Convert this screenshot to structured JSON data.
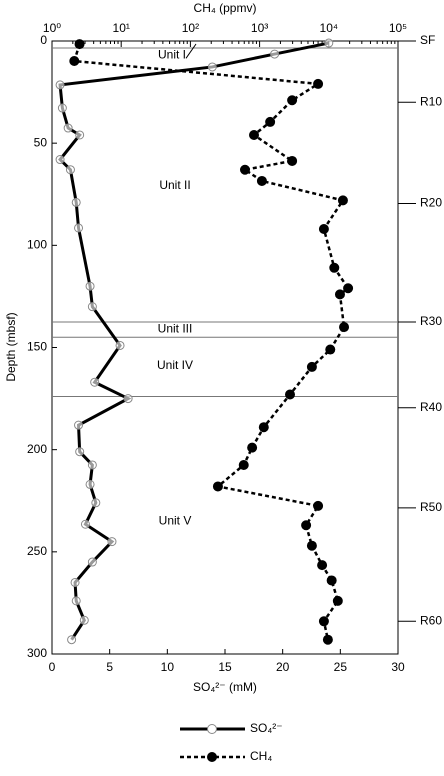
{
  "chart_data": {
    "type": "depth-profile",
    "ylabel": "Depth (mbsf)",
    "ylim": [
      0,
      300
    ],
    "yticks": [
      0,
      50,
      100,
      150,
      200,
      250,
      300
    ],
    "xlabel": "SO₄²⁻ (mM)",
    "xlim": [
      0,
      30
    ],
    "xticks": [
      0,
      5,
      10,
      15,
      20,
      25,
      30
    ],
    "x2label": "CH₄ (ppmv)",
    "x2lim": [
      1,
      100000
    ],
    "x2log": true,
    "x2ticks": [
      {
        "value": 1,
        "label": "10⁰"
      },
      {
        "value": 10,
        "label": "10¹"
      },
      {
        "value": 100,
        "label": "10²"
      },
      {
        "value": 1000,
        "label": "10³"
      },
      {
        "value": 10000,
        "label": "10⁴"
      },
      {
        "value": 100000,
        "label": "10⁵"
      }
    ],
    "series": [
      {
        "name": "SO₄²⁻",
        "axis": "x",
        "color": "#000000",
        "dash": false,
        "marker": "open",
        "depth": [
          1,
          6.4,
          12.7,
          21.5,
          32.8,
          42.6,
          46,
          58,
          63,
          79,
          91.5,
          120,
          130,
          149,
          167,
          175,
          188,
          201,
          207.5,
          217,
          226,
          236.5,
          245,
          255,
          265,
          274,
          283.5,
          293
        ],
        "values": [
          24,
          19.3,
          13.9,
          0.7,
          0.9,
          1.4,
          2.4,
          0.7,
          1.6,
          2.1,
          2.3,
          3.3,
          3.5,
          5.9,
          3.7,
          6.6,
          2.3,
          2.4,
          3.5,
          3.3,
          3.8,
          2.9,
          5.2,
          3.5,
          2.0,
          2.1,
          2.8,
          1.7
        ]
      },
      {
        "name": "CH₄",
        "axis": "x2",
        "color": "#000000",
        "dash": true,
        "marker": "filled",
        "depth": [
          1.5,
          9.8,
          21,
          29,
          39.6,
          46,
          58.7,
          63,
          68.5,
          78,
          92,
          111,
          121,
          124,
          140,
          151,
          159.5,
          173,
          189,
          199,
          207.5,
          218,
          227.5,
          237,
          247,
          256.5,
          264,
          274,
          284,
          293
        ],
        "values": [
          2.5,
          2.1,
          7000,
          2950,
          1420,
          830,
          2950,
          615,
          1080,
          16000,
          8500,
          12000,
          19000,
          14500,
          16600,
          10500,
          5700,
          2750,
          1150,
          780,
          590,
          250,
          7000,
          4700,
          5700,
          8000,
          11000,
          13500,
          8500,
          9700
        ]
      }
    ],
    "unit_boundaries": [
      3.4,
      137.5,
      145,
      174
    ],
    "units": [
      {
        "label": "Unit I",
        "depth": 7
      },
      {
        "label": "Unit II",
        "depth": 71
      },
      {
        "label": "Unit III",
        "depth": 141
      },
      {
        "label": "Unit IV",
        "depth": 159
      },
      {
        "label": "Unit V",
        "depth": 235
      }
    ],
    "cores": [
      {
        "label": "SF",
        "depth": 0
      },
      {
        "label": "R10",
        "depth": 30
      },
      {
        "label": "R20",
        "depth": 79.5
      },
      {
        "label": "R30",
        "depth": 137.5
      },
      {
        "label": "R40",
        "depth": 179.5
      },
      {
        "label": "R50",
        "depth": 228.5
      },
      {
        "label": "R60",
        "depth": 284
      }
    ]
  }
}
